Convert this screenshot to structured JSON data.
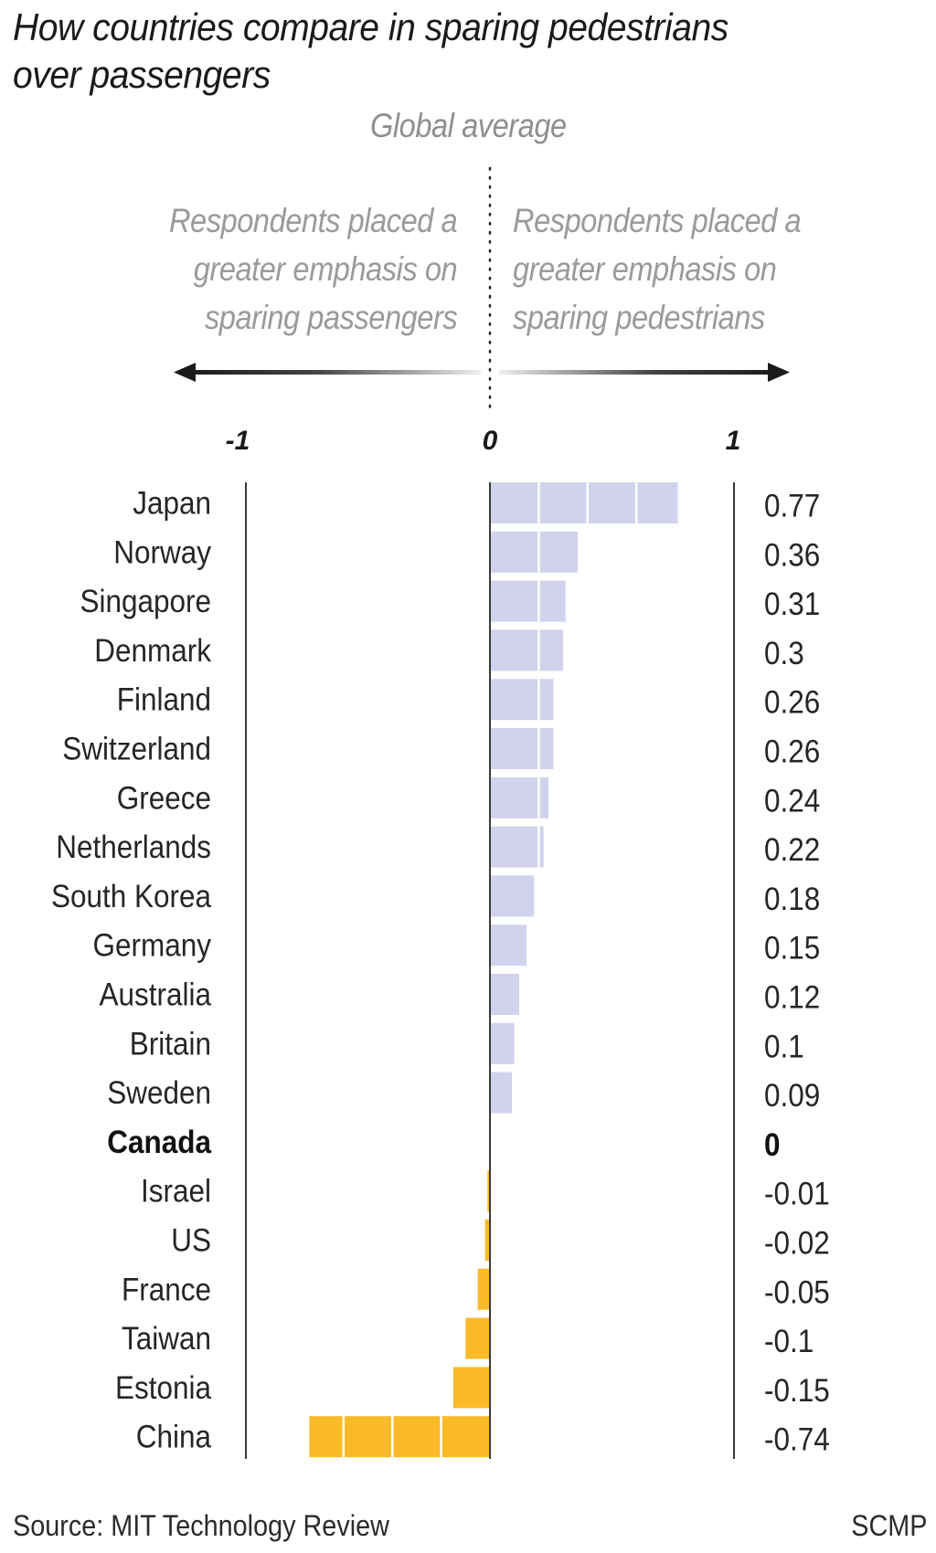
{
  "chart_data": {
    "type": "bar",
    "orientation": "horizontal",
    "title": "How countries compare in sparing pedestrians over passengers",
    "title_lines": [
      "How countries compare in sparing pedestrians",
      "over passengers"
    ],
    "reference_label": "Global average",
    "left_annotation": [
      "Respondents placed a",
      "greater emphasis on",
      "sparing passengers"
    ],
    "right_annotation": [
      "Respondents placed a",
      "greater emphasis on",
      "sparing pedestrians"
    ],
    "x_ticks": [
      "-1",
      "0",
      "1"
    ],
    "xlim": [
      -1,
      1
    ],
    "gridline_step": 0.2,
    "categories": [
      "Japan",
      "Norway",
      "Singapore",
      "Denmark",
      "Finland",
      "Switzerland",
      "Greece",
      "Netherlands",
      "South Korea",
      "Germany",
      "Australia",
      "Britain",
      "Sweden",
      "Canada",
      "Israel",
      "US",
      "France",
      "Taiwan",
      "Estonia",
      "China"
    ],
    "values": [
      0.77,
      0.36,
      0.31,
      0.3,
      0.26,
      0.26,
      0.24,
      0.22,
      0.18,
      0.15,
      0.12,
      0.1,
      0.09,
      0,
      -0.01,
      -0.02,
      -0.05,
      -0.1,
      -0.15,
      -0.74
    ],
    "value_labels": [
      "0.77",
      "0.36",
      "0.31",
      "0.3",
      "0.26",
      "0.26",
      "0.24",
      "0.22",
      "0.18",
      "0.15",
      "0.12",
      "0.1",
      "0.09",
      "0",
      "-0.01",
      "-0.02",
      "-0.05",
      "-0.1",
      "-0.15",
      "-0.74"
    ],
    "highlight": "Canada",
    "colors": {
      "positive": "#D0D3EB",
      "negative": "#FBBA27",
      "axis": "#3a3a3a",
      "annotation": "#9a9a9a"
    }
  },
  "footer": {
    "source": "Source: MIT Technology Review",
    "brand": "SCMP"
  }
}
